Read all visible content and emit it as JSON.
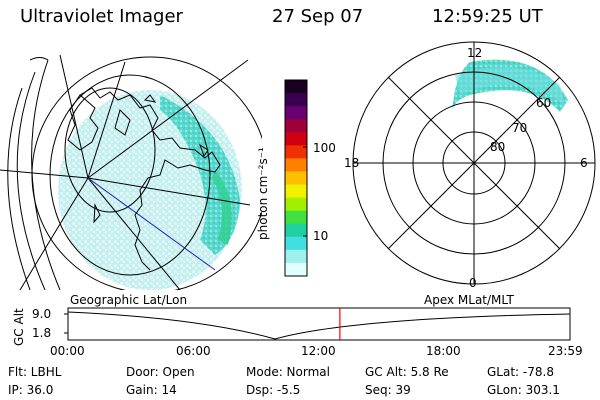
{
  "header": {
    "title": "Ultraviolet Imager",
    "date": "27 Sep 07",
    "time": "12:59:25 UT"
  },
  "geo_panel": {
    "label": "Geographic Lat/Lon"
  },
  "colorbar": {
    "label": "photon cm⁻²s⁻¹",
    "ticks": [
      "100",
      "10"
    ],
    "colors": [
      "#1a0020",
      "#3a0050",
      "#6a0070",
      "#a0003a",
      "#d00010",
      "#f03000",
      "#ff8000",
      "#ffc000",
      "#f0f000",
      "#a0f000",
      "#40e040",
      "#20d0a0",
      "#40e0e0",
      "#a0f0f0",
      "#e0ffff"
    ]
  },
  "polar_panel": {
    "label": "Apex MLat/MLT",
    "mlt_labels": {
      "top": "12",
      "left": "18",
      "right": "6",
      "bottom": "0"
    },
    "lat_labels": [
      "60",
      "70",
      "80"
    ]
  },
  "altitude_plot": {
    "ylabel": "GC Alt",
    "yticks": [
      "9.0",
      "1.8"
    ],
    "xticks": [
      "00:00",
      "06:00",
      "12:00",
      "18:00",
      "23:59"
    ],
    "current_time_marker": 12.99,
    "marker_color": "#ff0000"
  },
  "status": {
    "flt": "Flt: LBHL",
    "ip": "IP: 36.0",
    "door": "Door: Open",
    "gain": "Gain: 14",
    "mode": "Mode: Normal",
    "dsp": "Dsp:    -5.5",
    "gc_alt": "GC Alt: 5.8 Re",
    "seq": "Seq: 39",
    "glat": "GLat: -78.8",
    "glon": "GLon: 303.1"
  }
}
